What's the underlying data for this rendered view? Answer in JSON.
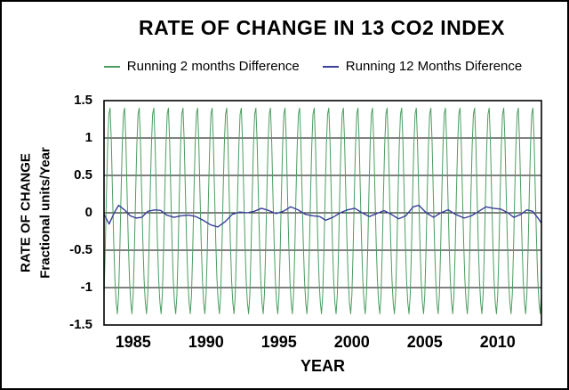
{
  "chart": {
    "title": "RATE OF CHANGE IN 13 CO2 INDEX"
  },
  "chart_data": {
    "type": "line",
    "title": "RATE OF CHANGE IN 13 CO2 INDEX",
    "xlabel": "YEAR",
    "ylabel_line1": "RATE OF CHANGE",
    "ylabel_line2": "Fractional units/Year",
    "xlim": [
      1983,
      2013
    ],
    "ylim": [
      -1.5,
      1.5
    ],
    "xticks": [
      1985,
      1990,
      1995,
      2000,
      2005,
      2010
    ],
    "ytick_labels": [
      "1.5",
      "1",
      "0.5",
      "0",
      "-0.5",
      "-1",
      "-1.5"
    ],
    "ytick_values": [
      1.5,
      1,
      0.5,
      0,
      -0.5,
      -1,
      -1.5
    ],
    "grid_values": [
      1,
      0.5,
      0,
      -0.5,
      -1
    ],
    "grid_color": "#000000",
    "frame_color": "#000000",
    "background_color": "#ffffff",
    "legend_position": "top",
    "series": [
      {
        "name": "Running 2 months Difference",
        "color": "#4c9d5f",
        "kind": "periodic-annual",
        "x_start": 1983.0,
        "x_end": 2013.0,
        "samples_per_year": 12,
        "monthly_cycle": [
          -1.1,
          -0.5,
          0.25,
          0.9,
          1.32,
          1.4,
          0.95,
          0.25,
          -0.4,
          -0.9,
          -1.2,
          -1.35
        ],
        "peak": 1.4,
        "trough": -1.35,
        "stroke_width": 1
      },
      {
        "name": "Running 12 Months Diference",
        "color": "#3a3f99",
        "kind": "points",
        "stroke_width": 1.4,
        "x": [
          1983.0,
          1983.35,
          1983.7,
          1984.0,
          1984.4,
          1984.8,
          1985.2,
          1985.6,
          1986.0,
          1986.5,
          1986.9,
          1987.3,
          1987.8,
          1988.3,
          1988.8,
          1989.3,
          1989.8,
          1990.3,
          1990.8,
          1991.3,
          1991.8,
          1992.3,
          1992.8,
          1993.3,
          1993.8,
          1994.3,
          1994.8,
          1995.3,
          1995.8,
          1996.3,
          1996.8,
          1997.3,
          1997.8,
          1998.2,
          1998.7,
          1999.2,
          1999.7,
          2000.2,
          2000.7,
          2001.2,
          2001.7,
          2002.2,
          2002.7,
          2003.2,
          2003.7,
          2004.2,
          2004.6,
          2005.1,
          2005.6,
          2006.1,
          2006.6,
          2007.1,
          2007.7,
          2008.2,
          2008.7,
          2009.2,
          2009.7,
          2010.2,
          2010.7,
          2011.1,
          2011.6,
          2012.0,
          2012.4,
          2012.8,
          2013.0
        ],
        "y": [
          -0.02,
          -0.15,
          0.0,
          0.1,
          0.04,
          -0.04,
          -0.07,
          -0.06,
          0.02,
          0.04,
          0.03,
          -0.03,
          -0.06,
          -0.04,
          -0.03,
          -0.05,
          -0.1,
          -0.16,
          -0.19,
          -0.12,
          -0.02,
          0.01,
          0.0,
          0.02,
          0.06,
          0.03,
          -0.01,
          0.02,
          0.08,
          0.04,
          -0.02,
          -0.04,
          -0.05,
          -0.1,
          -0.06,
          0.0,
          0.04,
          0.06,
          0.0,
          -0.05,
          -0.01,
          0.03,
          -0.02,
          -0.08,
          -0.04,
          0.08,
          0.1,
          0.0,
          -0.06,
          0.0,
          0.04,
          -0.02,
          -0.07,
          -0.04,
          0.02,
          0.08,
          0.06,
          0.05,
          0.0,
          -0.06,
          -0.02,
          0.04,
          0.02,
          -0.08,
          -0.14
        ]
      }
    ]
  }
}
